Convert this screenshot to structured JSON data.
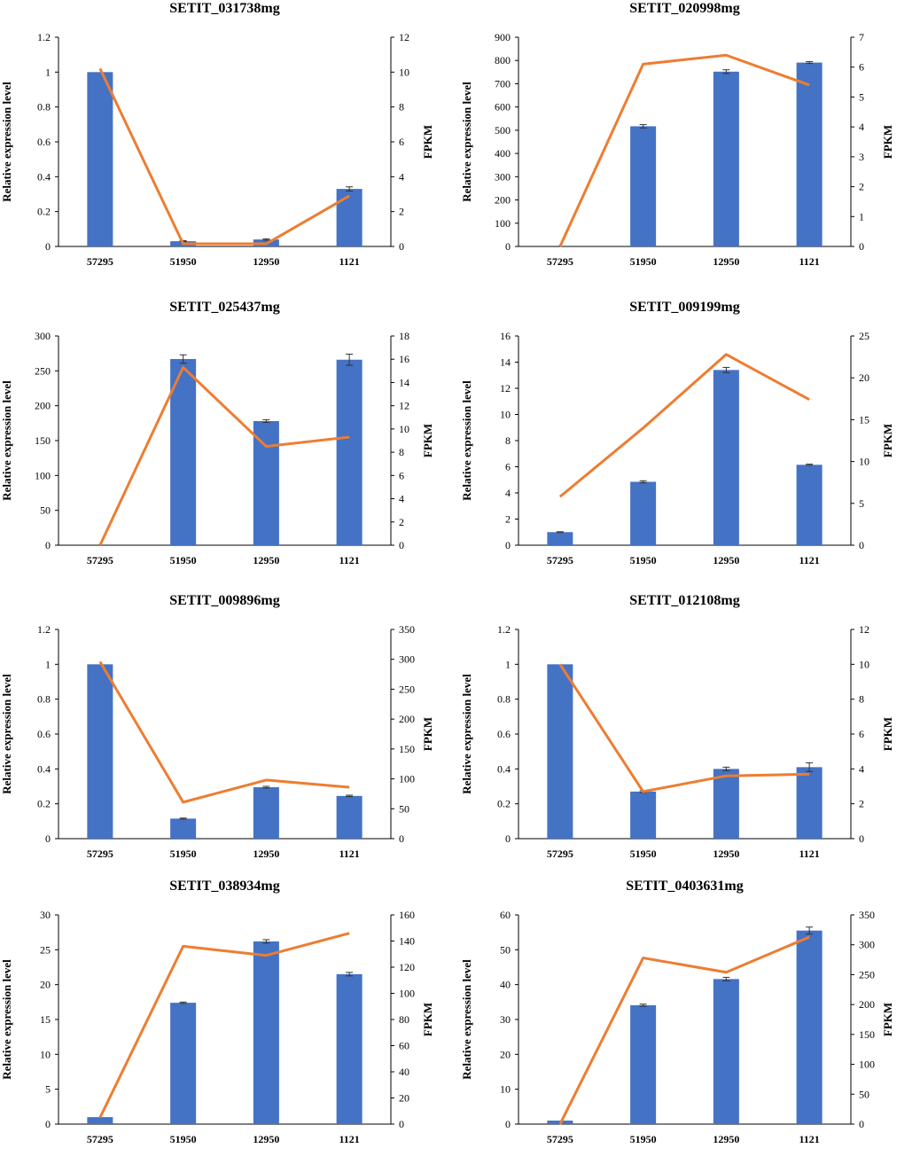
{
  "colors": {
    "bar": "#4472C4",
    "line": "#ED7D31",
    "axis": "#000000"
  },
  "chart_data": [
    {
      "type": "bar+line",
      "title": "SETIT_031738mg",
      "categories": [
        "57295",
        "51950",
        "12950",
        "1121"
      ],
      "ylabel": "Relative expression level",
      "y2label": "FPKM",
      "ylim": [
        0,
        1.2
      ],
      "yticks": [
        0,
        0.2,
        0.4,
        0.6,
        0.8,
        1,
        1.2
      ],
      "yticklabels": [
        "0",
        "0.2",
        "0.4",
        "0.6",
        "0.8",
        "1",
        "1.2"
      ],
      "y2lim": [
        0,
        12
      ],
      "y2ticks": [
        0,
        2,
        4,
        6,
        8,
        10,
        12
      ],
      "y2ticklabels": [
        "0",
        "2",
        "4",
        "6",
        "8",
        "10",
        "12"
      ],
      "bars": [
        1.0,
        0.03,
        0.04,
        0.33
      ],
      "errors": [
        0,
        0.003,
        0.004,
        0.012
      ],
      "line": [
        10.2,
        0.15,
        0.15,
        2.9
      ]
    },
    {
      "type": "bar+line",
      "title": "SETIT_020998mg",
      "categories": [
        "57295",
        "51950",
        "12950",
        "1121"
      ],
      "ylabel": "Relative expression level",
      "y2label": "FPKM",
      "ylim": [
        0,
        900
      ],
      "yticks": [
        0,
        100,
        200,
        300,
        400,
        500,
        600,
        700,
        800,
        900
      ],
      "yticklabels": [
        "0",
        "100",
        "200",
        "300",
        "400",
        "500",
        "600",
        "700",
        "800",
        "900"
      ],
      "y2lim": [
        0,
        7
      ],
      "y2ticks": [
        0,
        1,
        2,
        3,
        4,
        5,
        6,
        7
      ],
      "y2ticklabels": [
        "0",
        "1",
        "2",
        "3",
        "4",
        "5",
        "6",
        "7"
      ],
      "bars": [
        0,
        517,
        752,
        791
      ],
      "errors": [
        0,
        7,
        8,
        4
      ],
      "line": [
        0,
        6.1,
        6.4,
        5.4
      ]
    },
    {
      "type": "bar+line",
      "title": "SETIT_025437mg",
      "categories": [
        "57295",
        "51950",
        "12950",
        "1121"
      ],
      "ylabel": "Relative expression level",
      "y2label": "FPKM",
      "ylim": [
        0,
        300
      ],
      "yticks": [
        0,
        50,
        100,
        150,
        200,
        250,
        300
      ],
      "yticklabels": [
        "0",
        "50",
        "100",
        "150",
        "200",
        "250",
        "300"
      ],
      "y2lim": [
        0,
        18
      ],
      "y2ticks": [
        0,
        2,
        4,
        6,
        8,
        10,
        12,
        14,
        16,
        18
      ],
      "y2ticklabels": [
        "0",
        "2",
        "4",
        "6",
        "8",
        "10",
        "12",
        "14",
        "16",
        "18"
      ],
      "bars": [
        0,
        267,
        178,
        266
      ],
      "errors": [
        0,
        6,
        2,
        8
      ],
      "line": [
        0,
        15.3,
        8.5,
        9.3
      ]
    },
    {
      "type": "bar+line",
      "title": "SETIT_009199mg",
      "categories": [
        "57295",
        "51950",
        "12950",
        "1121"
      ],
      "ylabel": "Relative expression level",
      "y2label": "FPKM",
      "ylim": [
        0,
        16
      ],
      "yticks": [
        0,
        2,
        4,
        6,
        8,
        10,
        12,
        14,
        16
      ],
      "yticklabels": [
        "0",
        "2",
        "4",
        "6",
        "8",
        "10",
        "12",
        "14",
        "16"
      ],
      "y2lim": [
        0,
        25
      ],
      "y2ticks": [
        0,
        5,
        10,
        15,
        20,
        25
      ],
      "y2ticklabels": [
        "0",
        "5",
        "10",
        "15",
        "20",
        "25"
      ],
      "bars": [
        1.0,
        4.85,
        13.4,
        6.15
      ],
      "errors": [
        0.03,
        0.08,
        0.2,
        0.05
      ],
      "line": [
        5.8,
        14.0,
        22.8,
        17.4
      ]
    },
    {
      "type": "bar+line",
      "title": "SETIT_009896mg",
      "categories": [
        "57295",
        "51950",
        "12950",
        "1121"
      ],
      "ylabel": "Relative expression level",
      "y2label": "FPKM",
      "ylim": [
        0,
        1.2
      ],
      "yticks": [
        0,
        0.2,
        0.4,
        0.6,
        0.8,
        1,
        1.2
      ],
      "yticklabels": [
        "0",
        "0.2",
        "0.4",
        "0.6",
        "0.8",
        "1",
        "1.2"
      ],
      "y2lim": [
        0,
        350
      ],
      "y2ticks": [
        0,
        50,
        100,
        150,
        200,
        250,
        300,
        350
      ],
      "y2ticklabels": [
        "0",
        "50",
        "100",
        "150",
        "200",
        "250",
        "300",
        "350"
      ],
      "bars": [
        1.0,
        0.115,
        0.295,
        0.245
      ],
      "errors": [
        0,
        0.003,
        0.005,
        0.004
      ],
      "line": [
        296,
        61,
        98,
        86
      ]
    },
    {
      "type": "bar+line",
      "title": "SETIT_012108mg",
      "categories": [
        "57295",
        "51950",
        "12950",
        "1121"
      ],
      "ylabel": "Relative expression level",
      "y2label": "FPKM",
      "ylim": [
        0,
        1.2
      ],
      "yticks": [
        0,
        0.2,
        0.4,
        0.6,
        0.8,
        1,
        1.2
      ],
      "yticklabels": [
        "0",
        "0.2",
        "0.4",
        "0.6",
        "0.8",
        "1",
        "1.2"
      ],
      "y2lim": [
        0,
        12
      ],
      "y2ticks": [
        0,
        2,
        4,
        6,
        8,
        10,
        12
      ],
      "y2ticklabels": [
        "0",
        "2",
        "4",
        "6",
        "8",
        "10",
        "12"
      ],
      "bars": [
        1.0,
        0.27,
        0.4,
        0.41
      ],
      "errors": [
        0,
        0.005,
        0.01,
        0.025
      ],
      "line": [
        10.0,
        2.7,
        3.6,
        3.7
      ]
    },
    {
      "type": "bar+line",
      "title": "SETIT_038934mg",
      "categories": [
        "57295",
        "51950",
        "12950",
        "1121"
      ],
      "ylabel": "Relative expression level",
      "y2label": "FPKM",
      "ylim": [
        0,
        30
      ],
      "yticks": [
        0,
        5,
        10,
        15,
        20,
        25,
        30
      ],
      "yticklabels": [
        "0",
        "5",
        "10",
        "15",
        "20",
        "25",
        "30"
      ],
      "y2lim": [
        0,
        160
      ],
      "y2ticks": [
        0,
        20,
        40,
        60,
        80,
        100,
        120,
        140,
        160
      ],
      "y2ticklabels": [
        "0",
        "20",
        "40",
        "60",
        "80",
        "100",
        "120",
        "140",
        "160"
      ],
      "bars": [
        1.0,
        17.4,
        26.2,
        21.5
      ],
      "errors": [
        0,
        0.1,
        0.25,
        0.25
      ],
      "line": [
        5,
        136,
        129,
        146
      ]
    },
    {
      "type": "bar+line",
      "title": "SETIT_0403631mg",
      "categories": [
        "57295",
        "51950",
        "12950",
        "1121"
      ],
      "ylabel": "Relative expression level",
      "y2label": "FPKM",
      "ylim": [
        0,
        60
      ],
      "yticks": [
        0,
        10,
        20,
        30,
        40,
        50,
        60
      ],
      "yticklabels": [
        "0",
        "10",
        "20",
        "30",
        "40",
        "50",
        "60"
      ],
      "y2lim": [
        0,
        350
      ],
      "y2ticks": [
        0,
        50,
        100,
        150,
        200,
        250,
        300,
        350
      ],
      "y2ticklabels": [
        "0",
        "50",
        "100",
        "150",
        "200",
        "250",
        "300",
        "350"
      ],
      "bars": [
        1.0,
        34.1,
        41.6,
        55.5
      ],
      "errors": [
        0,
        0.3,
        0.5,
        1.0
      ],
      "line": [
        0,
        278,
        254,
        313
      ]
    }
  ]
}
